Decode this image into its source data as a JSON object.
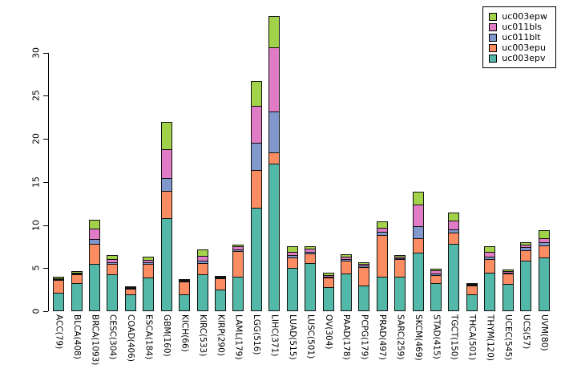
{
  "chart_data": {
    "type": "bar",
    "stacked": true,
    "title": "",
    "xlabel": "",
    "ylabel": "",
    "ylim": [
      0,
      35
    ],
    "yticks": [
      0,
      5,
      10,
      15,
      20,
      25,
      30
    ],
    "grid": false,
    "legend_position": "top-right",
    "categories": [
      "ACC(79)",
      "BLCA(408)",
      "BRCA(1093)",
      "CESC(304)",
      "COAD(406)",
      "ESCA(184)",
      "GBM(160)",
      "KICH(66)",
      "KIRC(533)",
      "KIRP(290)",
      "LAML(179)",
      "LGG(516)",
      "LIHC(371)",
      "LUAD(515)",
      "LUSC(501)",
      "OV(304)",
      "PAAD(178)",
      "PCPG(179)",
      "PRAD(497)",
      "SARC(259)",
      "SKCM(469)",
      "STAD(415)",
      "TGCT(150)",
      "THCA(501)",
      "THYM(120)",
      "UCEC(545)",
      "UCS(57)",
      "UVM(80)"
    ],
    "stack_order": "bottom_to_top",
    "series": [
      {
        "name": "uc003epv",
        "color": "#53B8A7",
        "values": [
          2.1,
          3.3,
          5.5,
          4.3,
          2.0,
          3.9,
          10.8,
          2.0,
          4.3,
          2.5,
          4.0,
          12.0,
          17.1,
          5.0,
          5.6,
          2.8,
          4.4,
          3.0,
          4.0,
          4.0,
          6.8,
          3.3,
          7.8,
          2.0,
          4.5,
          3.2,
          5.9,
          6.2
        ]
      },
      {
        "name": "uc003epu",
        "color": "#FC8D62",
        "values": [
          1.6,
          1.1,
          2.4,
          1.3,
          0.7,
          1.7,
          3.3,
          1.5,
          1.4,
          1.4,
          3.1,
          4.5,
          1.4,
          1.3,
          1.2,
          1.2,
          1.6,
          2.2,
          4.9,
          2.1,
          1.8,
          1.0,
          1.4,
          1.1,
          1.6,
          1.3,
          1.3,
          1.5
        ]
      },
      {
        "name": "uc011blt",
        "color": "#8098CC",
        "values": [
          0.15,
          0.15,
          0.7,
          0.3,
          0.1,
          0.3,
          1.5,
          0.1,
          0.35,
          0.1,
          0.3,
          3.2,
          4.9,
          0.4,
          0.3,
          0.2,
          0.25,
          0.3,
          0.5,
          0.25,
          1.5,
          0.3,
          0.5,
          0.1,
          0.4,
          0.2,
          0.4,
          0.5
        ]
      },
      {
        "name": "uc011bls",
        "color": "#E07BC5",
        "values": [
          0.2,
          0.15,
          1.3,
          0.4,
          0.2,
          0.3,
          3.5,
          0.2,
          0.65,
          0.15,
          0.4,
          4.4,
          7.5,
          0.5,
          0.4,
          0.3,
          0.35,
          0.3,
          0.6,
          0.3,
          2.6,
          0.4,
          1.1,
          0.2,
          0.7,
          0.25,
          0.4,
          0.6
        ]
      },
      {
        "name": "uc003epw",
        "color": "#A2D24A",
        "values": [
          0.25,
          0.3,
          1.1,
          0.6,
          0.2,
          0.5,
          3.2,
          0.2,
          0.8,
          0.15,
          0.3,
          3.0,
          3.7,
          0.7,
          0.4,
          0.3,
          0.4,
          0.3,
          0.8,
          0.25,
          1.5,
          0.3,
          1.0,
          0.1,
          0.7,
          0.25,
          0.4,
          1.0
        ]
      }
    ],
    "legend_order": [
      "uc003epw",
      "uc011bls",
      "uc011blt",
      "uc003epu",
      "uc003epv"
    ]
  },
  "colors": {
    "axis": "#000000",
    "background": "#ffffff",
    "segment_border": "#111111"
  }
}
